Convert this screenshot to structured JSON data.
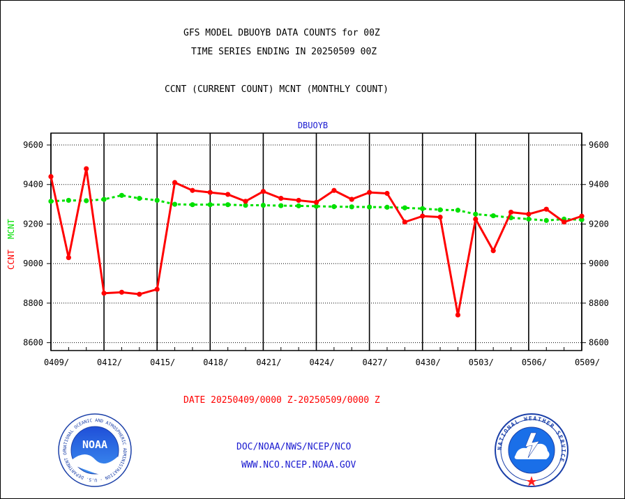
{
  "header": {
    "title_line1": "GFS MODEL DBUOYB DATA COUNTS for 00Z",
    "title_line2": "TIME SERIES ENDING IN 20250509 00Z",
    "subtitle": "CCNT (CURRENT COUNT) MCNT (MONTHLY COUNT)"
  },
  "footer": {
    "date_range": "DATE 20250409/0000 Z-20250509/0000 Z",
    "link1": "DOC/NOAA/NWS/NCEP/NCO",
    "link2": "WWW.NCO.NCEP.NOAA.GOV"
  },
  "logos": {
    "left": "NOAA",
    "left_ring": "NATIONAL OCEANIC AND ATMOSPHERIC ADMINISTRATION · U.S. DEPARTMENT OF COMMERCE",
    "right_ring": "NATIONAL WEATHER SERVICE"
  },
  "colors": {
    "ccnt": "#ff0000",
    "mcnt": "#00e000",
    "panel_title": "#1a1ad0"
  },
  "chart_data": {
    "type": "line",
    "title": "DBUOYB",
    "ylabel_red": "CCNT",
    "ylabel_green": "MCNT",
    "ylim": [
      8560,
      9660
    ],
    "yticks": [
      8600,
      8800,
      9000,
      9200,
      9400,
      9600
    ],
    "x_start_day": 0,
    "x_end_day": 30,
    "xticks": [
      {
        "day": 0,
        "label": "0409/"
      },
      {
        "day": 3,
        "label": "0412/"
      },
      {
        "day": 6,
        "label": "0415/"
      },
      {
        "day": 9,
        "label": "0418/"
      },
      {
        "day": 12,
        "label": "0421/"
      },
      {
        "day": 15,
        "label": "0424/"
      },
      {
        "day": 18,
        "label": "0427/"
      },
      {
        "day": 21,
        "label": "0430/"
      },
      {
        "day": 24,
        "label": "0503/"
      },
      {
        "day": 27,
        "label": "0506/"
      },
      {
        "day": 30,
        "label": "0509/"
      }
    ],
    "grid": true,
    "series": [
      {
        "name": "CCNT",
        "color": "#ff0000",
        "style": "solid",
        "values": [
          9440,
          9030,
          9480,
          8850,
          8855,
          8845,
          8870,
          9410,
          9370,
          9360,
          9350,
          9315,
          9365,
          9330,
          9320,
          9310,
          9370,
          9325,
          9360,
          9355,
          9210,
          9240,
          9235,
          8740,
          9225,
          9065,
          9260,
          9250,
          9275,
          9210,
          9240
        ]
      },
      {
        "name": "MCNT",
        "color": "#00e000",
        "style": "dashed",
        "values": [
          9315,
          9320,
          9318,
          9325,
          9345,
          9330,
          9320,
          9300,
          9298,
          9298,
          9298,
          9295,
          9295,
          9293,
          9292,
          9290,
          9288,
          9287,
          9286,
          9285,
          9282,
          9278,
          9272,
          9270,
          9250,
          9242,
          9232,
          9225,
          9218,
          9225,
          9222
        ]
      }
    ]
  }
}
